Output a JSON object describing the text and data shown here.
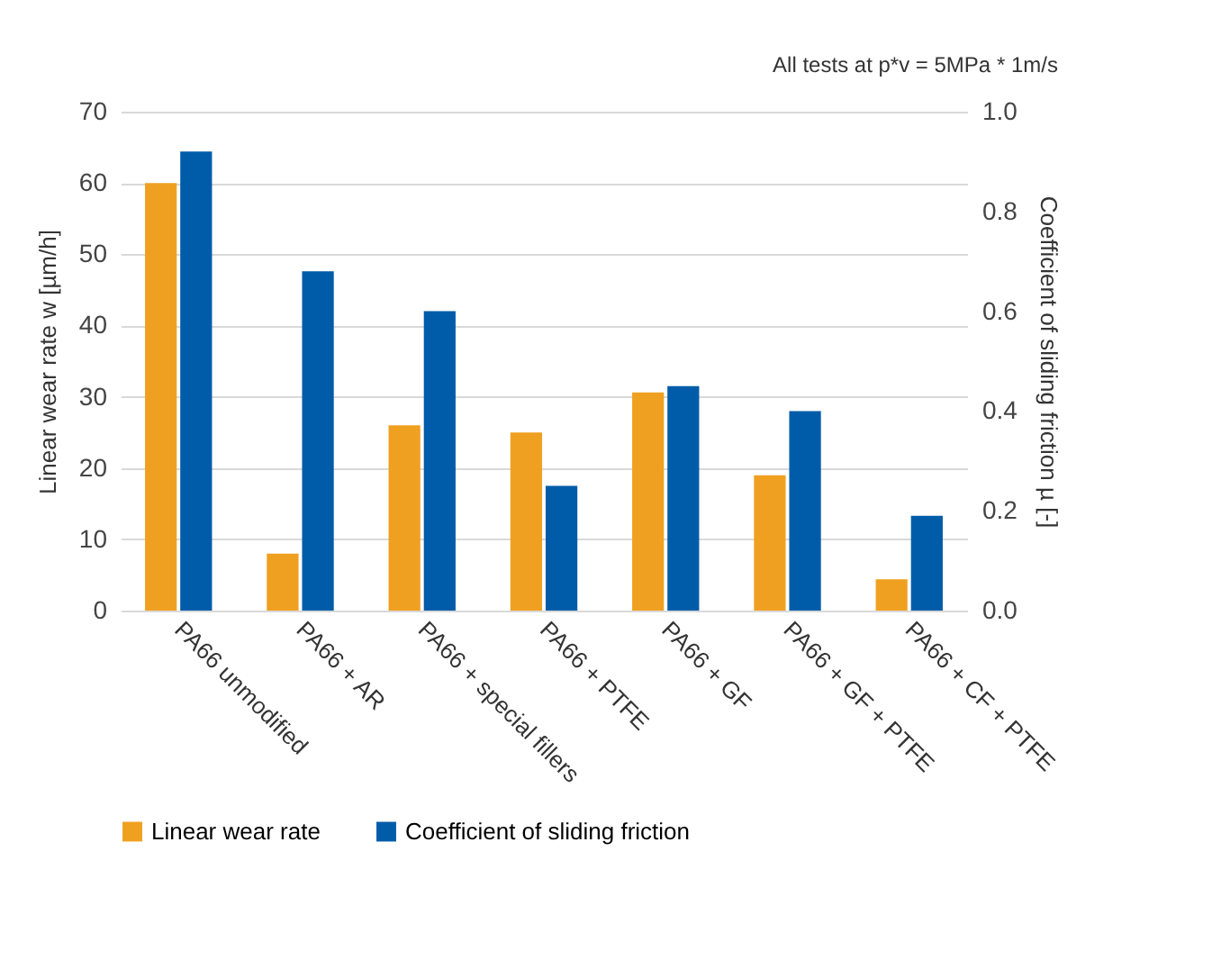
{
  "chart_data": {
    "type": "bar",
    "annotations": [
      "All tests at p*v = 5MPa * 1m/s"
    ],
    "categories": [
      "PA66 unmodified",
      "PA66 + AR",
      "PA66 + special fillers",
      "PA66 + PTFE",
      "PA66 + GF",
      "PA66 + GF + PTFE",
      "PA66 + CF + PTFE"
    ],
    "series": [
      {
        "name": "Linear wear rate",
        "color": "#f0a020",
        "values": [
          60,
          8,
          26,
          25,
          30.6,
          19,
          4.4
        ]
      },
      {
        "name": "Coefficient of sliding friction",
        "color": "#005ca9",
        "axis": "y2",
        "values": [
          0.92,
          0.68,
          0.6,
          0.25,
          0.45,
          0.4,
          0.19
        ]
      }
    ],
    "ylabel": "Linear wear rate w   [µm/h]",
    "y2label": "Coefficient of sliding friction µ   [-]",
    "ylim": [
      0,
      70
    ],
    "yticks": [
      0,
      10,
      20,
      30,
      40,
      50,
      60,
      70
    ],
    "y2lim": [
      0,
      1.0
    ],
    "y2ticks": [
      {
        "value": 0,
        "label": "0.0"
      },
      0.2,
      0.4,
      0.6,
      0.8,
      {
        "value": 1.0,
        "label": "1.0"
      }
    ],
    "grid": "y",
    "legend": "bottom"
  }
}
